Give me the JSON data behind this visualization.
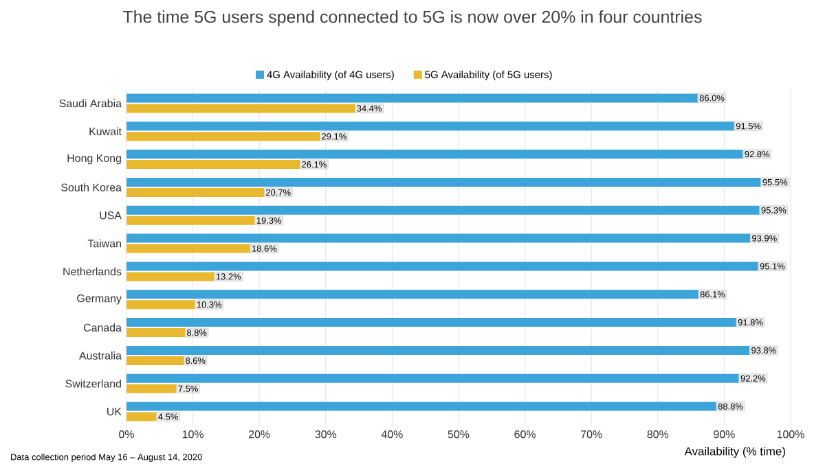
{
  "chart_data": {
    "type": "bar",
    "orientation": "horizontal",
    "title": "The time 5G users spend connected to 5G is now over 20% in four countries",
    "xlabel": "Availability (% time)",
    "annotations": [
      "Data collection period May 16 – August 14, 2020"
    ],
    "categories": [
      "Saudi Arabia",
      "Kuwait",
      "Hong Kong",
      "South Korea",
      "USA",
      "Taiwan",
      "Netherlands",
      "Germany",
      "Canada",
      "Australia",
      "Switzerland",
      "UK"
    ],
    "series": [
      {
        "name": "4G Availability (of 4G users)",
        "color": "#3ca4d8",
        "values": [
          86.0,
          91.5,
          92.8,
          95.5,
          95.3,
          93.9,
          95.1,
          86.1,
          91.8,
          93.8,
          92.2,
          88.8
        ],
        "value_labels": [
          "86.0%",
          "91.5%",
          "92.8%",
          "95.5%",
          "95.3%",
          "93.9%",
          "95.1%",
          "86.1%",
          "91.8%",
          "93.8%",
          "92.2%",
          "88.8%"
        ]
      },
      {
        "name": "5G Availability (of 5G users)",
        "color": "#e8b92e",
        "values": [
          34.4,
          29.1,
          26.1,
          20.7,
          19.3,
          18.6,
          13.2,
          10.3,
          8.8,
          8.6,
          7.5,
          4.5
        ],
        "value_labels": [
          "34.4%",
          "29.1%",
          "26.1%",
          "20.7%",
          "19.3%",
          "18.6%",
          "13.2%",
          "10.3%",
          "8.8%",
          "8.6%",
          "7.5%",
          "4.5%"
        ]
      }
    ],
    "xlim": [
      0,
      100
    ],
    "xticks": [
      {
        "value": 0,
        "label": "0%"
      },
      {
        "value": 10,
        "label": "10%"
      },
      {
        "value": 20,
        "label": "20%"
      },
      {
        "value": 30,
        "label": "30%"
      },
      {
        "value": 40,
        "label": "40%"
      },
      {
        "value": 50,
        "label": "50%"
      },
      {
        "value": 60,
        "label": "60%"
      },
      {
        "value": 70,
        "label": "70%"
      },
      {
        "value": 80,
        "label": "80%"
      },
      {
        "value": 90,
        "label": "90%"
      },
      {
        "value": 100,
        "label": "100%"
      }
    ],
    "grid": "x",
    "legend": "top"
  }
}
